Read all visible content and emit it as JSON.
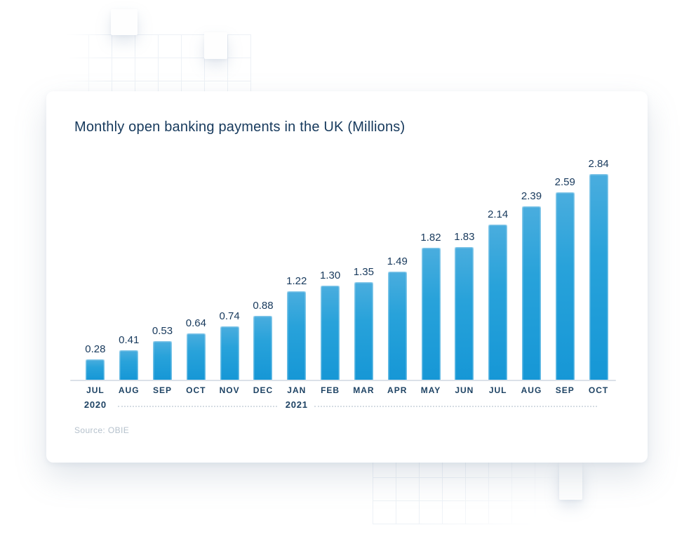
{
  "chart_data": {
    "type": "bar",
    "title": "Monthly open banking payments in the UK (Millions)",
    "source": "Source: OBIE",
    "categories": [
      "JUL",
      "AUG",
      "SEP",
      "OCT",
      "NOV",
      "DEC",
      "JAN",
      "FEB",
      "MAR",
      "APR",
      "MAY",
      "JUN",
      "JUL",
      "AUG",
      "SEP",
      "OCT"
    ],
    "year_markers": [
      {
        "col": 0,
        "label": "2020"
      },
      {
        "col": 6,
        "label": "2021"
      }
    ],
    "values": [
      0.28,
      0.41,
      0.53,
      0.64,
      0.74,
      0.88,
      1.22,
      1.3,
      1.35,
      1.49,
      1.82,
      1.83,
      2.14,
      2.39,
      2.59,
      2.84
    ],
    "value_labels": [
      "0.28",
      "0.41",
      "0.53",
      "0.64",
      "0.74",
      "0.88",
      "1.22",
      "1.30",
      "1.35",
      "1.49",
      "1.82",
      "1.83",
      "2.14",
      "2.39",
      "2.59",
      "2.84"
    ],
    "ylim": [
      0,
      2.84
    ],
    "y_axis_visible": false,
    "grid": false,
    "legend": "none",
    "bar_color_top": "#4aadde",
    "bar_color_bottom": "#1697d6",
    "text_color": "#16395c",
    "baseline_color": "#dbe1e8",
    "source_color": "#b5c1cc"
  }
}
